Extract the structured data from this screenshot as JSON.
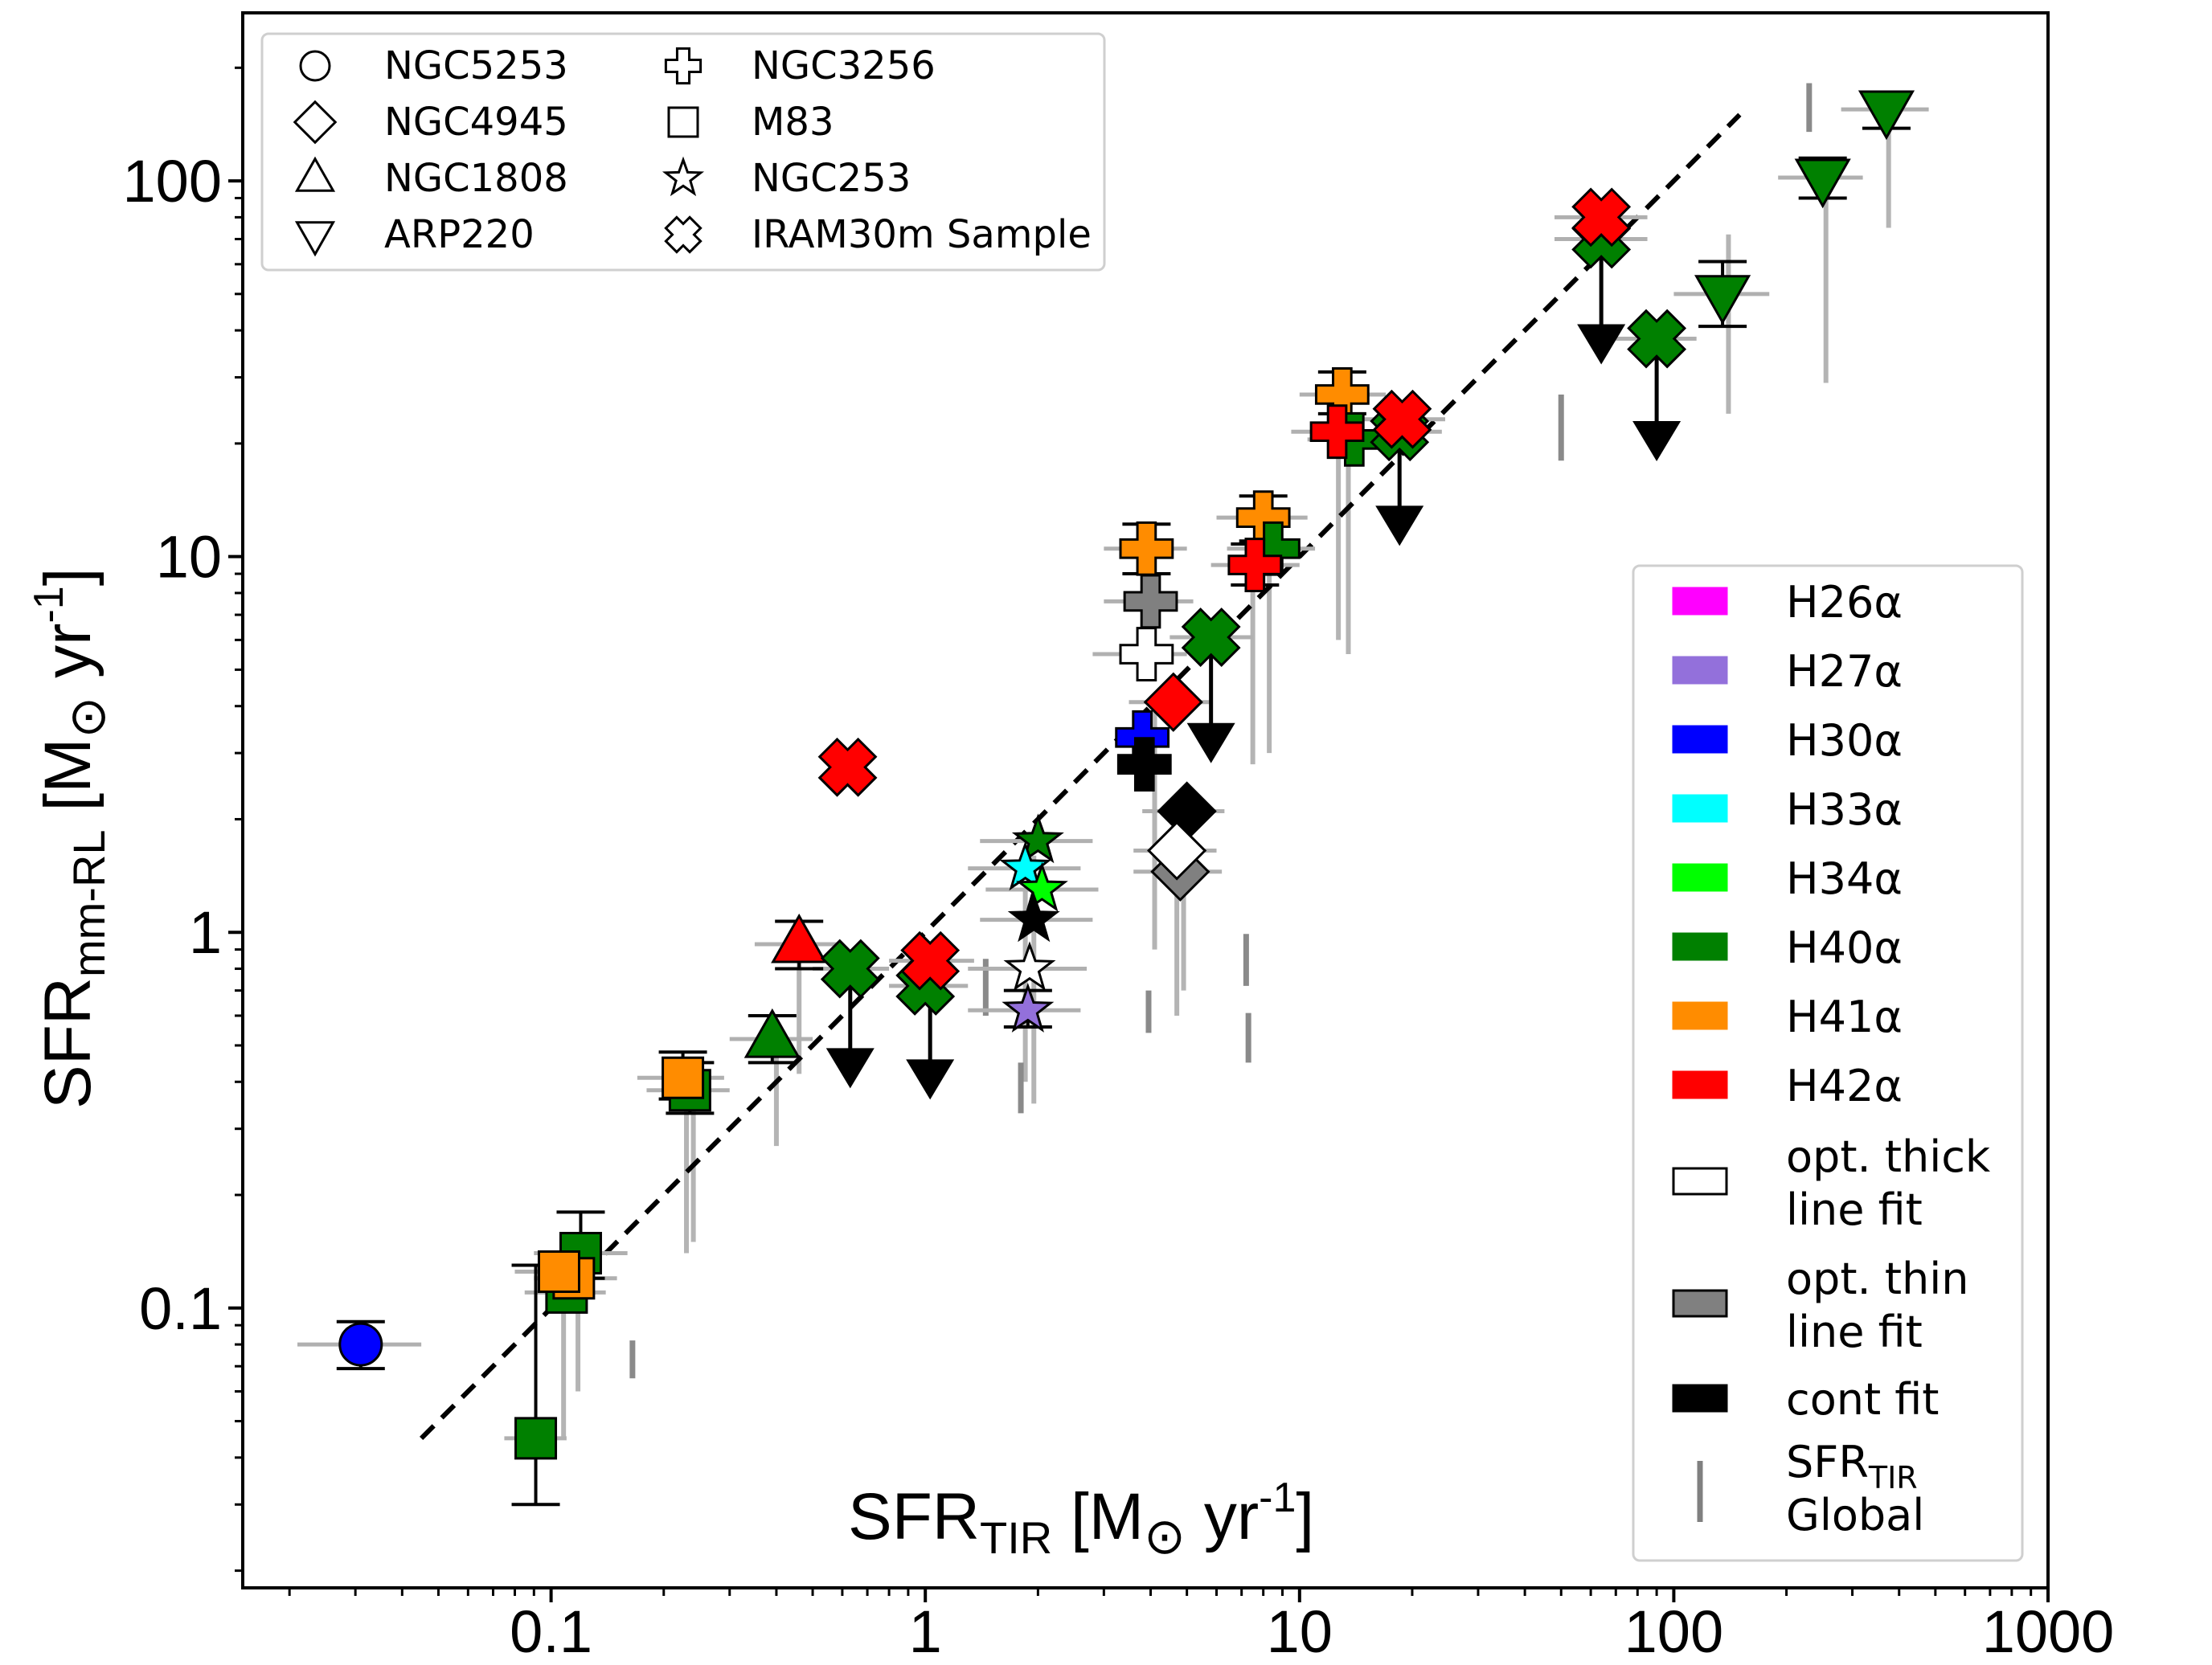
{
  "chart_data": {
    "type": "scatter",
    "xscale": "log",
    "yscale": "log",
    "xlim": [
      0.015,
      1000
    ],
    "ylim": [
      0.018,
      280
    ],
    "xlabel_main": "SFR",
    "xlabel_sub": "TIR",
    "xlabel_unit_pre": "[M",
    "xlabel_unit_sun": "⊙",
    "xlabel_unit_post": " yr",
    "xlabel_unit_exp": "-1",
    "xlabel_unit_close": "]",
    "ylabel_main": "SFR",
    "ylabel_sub": "mm-RL",
    "ylabel_unit_pre": "[M",
    "ylabel_unit_sun": "⊙",
    "ylabel_unit_post": " yr",
    "ylabel_unit_exp": "-1",
    "ylabel_unit_close": "]",
    "xticks": [
      {
        "v": 0.1,
        "label": "0.1"
      },
      {
        "v": 1,
        "label": "1"
      },
      {
        "v": 10,
        "label": "10"
      },
      {
        "v": 100,
        "label": "100"
      },
      {
        "v": 1000,
        "label": "1000"
      }
    ],
    "yticks": [
      {
        "v": 0.1,
        "label": "0.1"
      },
      {
        "v": 1,
        "label": "1"
      },
      {
        "v": 10,
        "label": "10"
      },
      {
        "v": 100,
        "label": "100"
      }
    ],
    "one_to_one_line": {
      "x": [
        0.045,
        150
      ],
      "y": [
        0.045,
        150
      ],
      "style": "dashed"
    },
    "legend_shapes": [
      {
        "shape": "circle",
        "label": "NGC5253"
      },
      {
        "shape": "diamond",
        "label": "NGC4945"
      },
      {
        "shape": "triangle-up",
        "label": "NGC1808"
      },
      {
        "shape": "triangle-down",
        "label": "ARP220"
      },
      {
        "shape": "plus",
        "label": "NGC3256"
      },
      {
        "shape": "square",
        "label": "M83"
      },
      {
        "shape": "star",
        "label": "NGC253"
      },
      {
        "shape": "x",
        "label": "IRAM30m Sample"
      }
    ],
    "legend_colors": [
      {
        "color": "#ff00ff",
        "label": "H26α",
        "type": "patch"
      },
      {
        "color": "#9370db",
        "label": "H27α",
        "type": "patch"
      },
      {
        "color": "#0000ff",
        "label": "H30α",
        "type": "patch"
      },
      {
        "color": "#00ffff",
        "label": "H33α",
        "type": "patch"
      },
      {
        "color": "#00ff00",
        "label": "H34α",
        "type": "patch"
      },
      {
        "color": "#008000",
        "label": "H40α",
        "type": "patch"
      },
      {
        "color": "#ff8c00",
        "label": "H41α",
        "type": "patch"
      },
      {
        "color": "#ff0000",
        "label": "H42α",
        "type": "patch"
      },
      {
        "color": "#ffffff",
        "label": "opt. thick",
        "label2": " line fit",
        "type": "patch"
      },
      {
        "color": "#808080",
        "label": "opt. thin",
        "label2": " line fit",
        "type": "patch"
      },
      {
        "color": "#000000",
        "label": "cont fit",
        "type": "patch"
      },
      {
        "color": "#808080",
        "label": "SFR",
        "label_sub": "TIR",
        "label2": " Global",
        "type": "line"
      }
    ],
    "points": [
      {
        "galaxy": "NGC5253",
        "shape": "circle",
        "color": "#0000ff",
        "x": 0.031,
        "y": 0.08,
        "xerr": [
          0.021,
          0.045
        ],
        "yerr": [
          0.069,
          0.092
        ]
      },
      {
        "galaxy": "M83",
        "shape": "square",
        "color": "#008000",
        "x": 0.091,
        "y": 0.045,
        "xerr": [
          0.075,
          0.11
        ],
        "yerr": [
          0.03,
          0.13
        ],
        "cap": "low"
      },
      {
        "galaxy": "M83",
        "shape": "square",
        "color": "#008000",
        "x": 0.12,
        "y": 0.14,
        "xerr": [
          0.09,
          0.16
        ],
        "yerr": [
          0.12,
          0.18
        ]
      },
      {
        "galaxy": "M83",
        "shape": "square",
        "color": "#008000",
        "x": 0.11,
        "y": 0.11,
        "xerr": [
          0.085,
          0.14
        ]
      },
      {
        "galaxy": "M83",
        "shape": "square",
        "color": "#ff8c00",
        "x": 0.115,
        "y": 0.12,
        "xerr": [
          0.09,
          0.15
        ]
      },
      {
        "galaxy": "M83",
        "shape": "square",
        "color": "#ff8c00",
        "x": 0.105,
        "y": 0.125,
        "xerr": [
          0.08,
          0.135
        ]
      },
      {
        "galaxy": "M83",
        "shape": "square",
        "color": "#008000",
        "x": 0.235,
        "y": 0.38,
        "xerr": [
          0.18,
          0.3
        ],
        "yerr": [
          0.33,
          0.45
        ]
      },
      {
        "galaxy": "M83",
        "shape": "square",
        "color": "#ff8c00",
        "x": 0.225,
        "y": 0.41,
        "xerr": [
          0.17,
          0.29
        ],
        "yerr": [
          0.36,
          0.48
        ]
      },
      {
        "galaxy": "NGC1808",
        "shape": "triangle-up",
        "color": "#008000",
        "x": 0.39,
        "y": 0.52,
        "xerr": [
          0.3,
          0.5
        ],
        "yerr": [
          0.45,
          0.6
        ]
      },
      {
        "galaxy": "NGC1808",
        "shape": "triangle-up",
        "color": "#ff0000",
        "x": 0.46,
        "y": 0.93,
        "xerr": [
          0.35,
          0.6
        ],
        "yerr": [
          0.8,
          1.07
        ]
      },
      {
        "galaxy": "IRAM30m",
        "shape": "x",
        "color": "#ff0000",
        "x": 0.62,
        "y": 2.75
      },
      {
        "galaxy": "IRAM30m",
        "shape": "x",
        "color": "#008000",
        "x": 0.63,
        "y": 0.8,
        "xerr": [
          0.5,
          0.8
        ],
        "upper": 0.45
      },
      {
        "galaxy": "IRAM30m",
        "shape": "x",
        "color": "#008000",
        "x": 1.0,
        "y": 0.72,
        "xerr": [
          0.8,
          1.3
        ]
      },
      {
        "galaxy": "IRAM30m",
        "shape": "x",
        "color": "#ff0000",
        "x": 1.03,
        "y": 0.84,
        "xerr": [
          0.8,
          1.35
        ],
        "upper": 0.42
      },
      {
        "galaxy": "NGC253",
        "shape": "star",
        "color": "#008000",
        "x": 2.0,
        "y": 1.75,
        "xerr": [
          1.4,
          2.8
        ]
      },
      {
        "galaxy": "NGC253",
        "shape": "star",
        "color": "#00ffff",
        "x": 1.85,
        "y": 1.48,
        "xerr": [
          1.3,
          2.6
        ]
      },
      {
        "galaxy": "NGC253",
        "shape": "star",
        "color": "#00ff00",
        "x": 2.05,
        "y": 1.3,
        "xerr": [
          1.45,
          2.9
        ]
      },
      {
        "galaxy": "NGC253",
        "shape": "star",
        "color": "#000000",
        "x": 1.95,
        "y": 1.08,
        "xerr": [
          1.4,
          2.8
        ]
      },
      {
        "galaxy": "NGC253",
        "shape": "star",
        "color": "#ffffff",
        "x": 1.9,
        "y": 0.8,
        "xerr": [
          1.3,
          2.7
        ]
      },
      {
        "galaxy": "NGC253",
        "shape": "star",
        "color": "#9370db",
        "x": 1.88,
        "y": 0.62,
        "xerr": [
          1.3,
          2.6
        ],
        "yerr": [
          0.56,
          0.7
        ]
      },
      {
        "galaxy": "NGC3256",
        "shape": "plus",
        "color": "#ff8c00",
        "x": 3.9,
        "y": 10.5,
        "xerr": [
          3.0,
          5.0
        ],
        "yerr": [
          9.0,
          12.2
        ]
      },
      {
        "galaxy": "NGC3256",
        "shape": "plus",
        "color": "#808080",
        "x": 4.0,
        "y": 7.6,
        "xerr": [
          3.0,
          5.2
        ]
      },
      {
        "galaxy": "NGC3256",
        "shape": "plus",
        "color": "#ffffff",
        "x": 3.9,
        "y": 5.5,
        "xerr": [
          2.8,
          5.0
        ]
      },
      {
        "galaxy": "NGC3256",
        "shape": "plus",
        "color": "#0000ff",
        "x": 3.8,
        "y": 3.3
      },
      {
        "galaxy": "NGC3256",
        "shape": "plus",
        "color": "#000000",
        "x": 3.85,
        "y": 2.8
      },
      {
        "galaxy": "NGC4945",
        "shape": "diamond",
        "color": "#ff0000",
        "x": 4.6,
        "y": 4.1,
        "xerr": [
          3.5,
          5.8
        ]
      },
      {
        "galaxy": "NGC4945",
        "shape": "diamond",
        "color": "#000000",
        "x": 5.0,
        "y": 2.1,
        "xerr": [
          3.8,
          6.3
        ]
      },
      {
        "galaxy": "NGC4945",
        "shape": "diamond",
        "color": "#808080",
        "x": 4.8,
        "y": 1.45,
        "xerr": [
          3.6,
          6.2
        ]
      },
      {
        "galaxy": "NGC4945",
        "shape": "diamond",
        "color": "#ffffff",
        "x": 4.7,
        "y": 1.65,
        "xerr": [
          3.6,
          6.0
        ]
      },
      {
        "galaxy": "IRAM30m",
        "shape": "x",
        "color": "#008000",
        "x": 5.8,
        "y": 6.1,
        "xerr": [
          4.5,
          7.5
        ],
        "upper": 3.3
      },
      {
        "galaxy": "NGC3256",
        "shape": "plus",
        "color": "#ff8c00",
        "x": 8.0,
        "y": 12.7,
        "xerr": [
          6.0,
          10.5
        ],
        "yerr": [
          11.0,
          14.5
        ]
      },
      {
        "galaxy": "NGC3256",
        "shape": "plus",
        "color": "#008000",
        "x": 8.5,
        "y": 10.5,
        "xerr": [
          6.4,
          11.0
        ]
      },
      {
        "galaxy": "NGC3256",
        "shape": "plus",
        "color": "#ff0000",
        "x": 7.6,
        "y": 9.5,
        "xerr": [
          5.8,
          10.0
        ],
        "yerr": [
          8.4,
          10.8
        ]
      },
      {
        "galaxy": "NGC3256",
        "shape": "plus",
        "color": "#ff8c00",
        "x": 13.0,
        "y": 27.0,
        "xerr": [
          10.0,
          17.0
        ],
        "yerr": [
          24.0,
          31.0
        ]
      },
      {
        "galaxy": "NGC3256",
        "shape": "plus",
        "color": "#008000",
        "x": 14.0,
        "y": 20.5,
        "xerr": [
          10.5,
          18.0
        ]
      },
      {
        "galaxy": "NGC3256",
        "shape": "plus",
        "color": "#ff0000",
        "x": 12.6,
        "y": 21.5,
        "xerr": [
          9.5,
          16.5
        ]
      },
      {
        "galaxy": "IRAM30m",
        "shape": "x",
        "color": "#008000",
        "x": 18.5,
        "y": 21.5,
        "xerr": [
          14.0,
          24.0
        ],
        "upper": 12.5
      },
      {
        "galaxy": "IRAM30m",
        "shape": "x",
        "color": "#ff0000",
        "x": 18.8,
        "y": 23.2,
        "xerr": [
          14.5,
          24.5
        ]
      },
      {
        "galaxy": "IRAM30m",
        "shape": "x",
        "color": "#008000",
        "x": 64.0,
        "y": 70.0,
        "xerr": [
          48.0,
          85.0
        ],
        "upper": 38.0
      },
      {
        "galaxy": "IRAM30m",
        "shape": "x",
        "color": "#ff0000",
        "x": 64.0,
        "y": 80.0,
        "xerr": [
          48.0,
          85.0
        ]
      },
      {
        "galaxy": "IRAM30m",
        "shape": "x",
        "color": "#008000",
        "x": 90.0,
        "y": 38.0,
        "xerr": [
          70.0,
          115.0
        ],
        "upper": 21.0
      },
      {
        "galaxy": "ARP220",
        "shape": "triangle-down",
        "color": "#008000",
        "x": 135.0,
        "y": 50.0,
        "xerr": [
          100.0,
          180.0
        ],
        "yerr": [
          41.0,
          61.0
        ]
      },
      {
        "galaxy": "ARP220",
        "shape": "triangle-down",
        "color": "#008000",
        "x": 250.0,
        "y": 102.0,
        "xerr": [
          190.0,
          320.0
        ],
        "yerr": [
          90.0,
          115.0
        ]
      },
      {
        "galaxy": "ARP220",
        "shape": "triangle-down",
        "color": "#008000",
        "x": 370.0,
        "y": 155.0,
        "xerr": [
          280.0,
          480.0
        ],
        "yerr": [
          138.0,
          172.0
        ]
      }
    ],
    "sfr_tir_global": [
      {
        "x": 0.165,
        "y1": 0.065,
        "y2": 0.082
      },
      {
        "x": 1.45,
        "y1": 0.6,
        "y2": 0.85
      },
      {
        "x": 1.8,
        "y1": 0.33,
        "y2": 0.45
      },
      {
        "x": 3.95,
        "y1": 0.54,
        "y2": 0.7
      },
      {
        "x": 7.3,
        "y1": 0.45,
        "y2": 0.61
      },
      {
        "x": 7.2,
        "y1": 0.72,
        "y2": 0.99
      },
      {
        "x": 50.0,
        "y1": 18.0,
        "y2": 27.0
      },
      {
        "x": 230.0,
        "y1": 135.0,
        "y2": 182.0
      }
    ],
    "grey_vertical_bars": [
      {
        "x": 0.108,
        "y1": 0.045,
        "y2": 0.11
      },
      {
        "x": 0.118,
        "y1": 0.06,
        "y2": 0.14
      },
      {
        "x": 0.24,
        "y1": 0.15,
        "y2": 0.45
      },
      {
        "x": 0.23,
        "y1": 0.14,
        "y2": 0.42
      },
      {
        "x": 0.4,
        "y1": 0.27,
        "y2": 0.55
      },
      {
        "x": 0.46,
        "y1": 0.42,
        "y2": 0.95
      },
      {
        "x": 1.95,
        "y1": 0.35,
        "y2": 1.6
      },
      {
        "x": 1.85,
        "y1": 0.4,
        "y2": 1.3
      },
      {
        "x": 4.7,
        "y1": 0.6,
        "y2": 2.2
      },
      {
        "x": 4.9,
        "y1": 0.7,
        "y2": 1.9
      },
      {
        "x": 4.1,
        "y1": 0.9,
        "y2": 4.0
      },
      {
        "x": 7.5,
        "y1": 2.8,
        "y2": 10.0
      },
      {
        "x": 8.3,
        "y1": 3.0,
        "y2": 12.5
      },
      {
        "x": 12.7,
        "y1": 6.0,
        "y2": 22.0
      },
      {
        "x": 13.5,
        "y1": 5.5,
        "y2": 26.0
      },
      {
        "x": 140.0,
        "y1": 24.0,
        "y2": 72.0
      },
      {
        "x": 255.0,
        "y1": 29.0,
        "y2": 104.0
      },
      {
        "x": 375.0,
        "y1": 75.0,
        "y2": 160.0
      }
    ]
  }
}
